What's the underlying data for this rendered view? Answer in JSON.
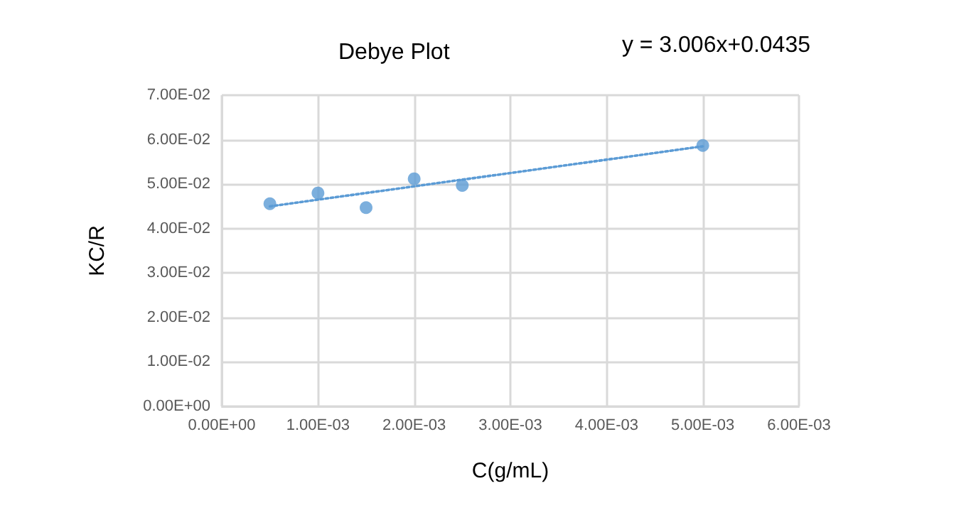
{
  "chart_data": {
    "type": "scatter",
    "title": "Debye Plot",
    "xlabel": "C(g/mL)",
    "ylabel": "KC/R",
    "annotations": [
      "y = 3.006x+0.0435"
    ],
    "series": [
      {
        "color": "#5b9bd5",
        "x": [
          0.0005,
          0.001,
          0.0015,
          0.002,
          0.0025,
          0.005
        ],
        "values": [
          0.0456,
          0.048,
          0.0447,
          0.0512,
          0.0497,
          0.0587
        ],
        "marker": "circle"
      },
      {
        "type": "line",
        "color": "#5b9bd5",
        "x": [
          0.0005,
          0.005
        ],
        "values": [
          0.045,
          0.0585
        ],
        "line_style": "dotted",
        "marker": "none"
      }
    ],
    "xlim": [
      0,
      0.006
    ],
    "xticks": [
      {
        "value": 0,
        "label": "0.00E+00"
      },
      {
        "value": 0.001,
        "label": "1.00E-03"
      },
      {
        "value": 0.002,
        "label": "2.00E-03"
      },
      {
        "value": 0.003,
        "label": "3.00E-03"
      },
      {
        "value": 0.004,
        "label": "4.00E-03"
      },
      {
        "value": 0.005,
        "label": "5.00E-03"
      },
      {
        "value": 0.006,
        "label": "6.00E-03"
      }
    ],
    "ylim": [
      0,
      0.07
    ],
    "yticks": [
      {
        "value": 0,
        "label": "0.00E+00"
      },
      {
        "value": 0.01,
        "label": "1.00E-02"
      },
      {
        "value": 0.02,
        "label": "2.00E-02"
      },
      {
        "value": 0.03,
        "label": "3.00E-02"
      },
      {
        "value": 0.04,
        "label": "4.00E-02"
      },
      {
        "value": 0.05,
        "label": "5.00E-02"
      },
      {
        "value": 0.06,
        "label": "6.00E-02"
      },
      {
        "value": 0.07,
        "label": "7.00E-02"
      }
    ],
    "grid": true
  }
}
